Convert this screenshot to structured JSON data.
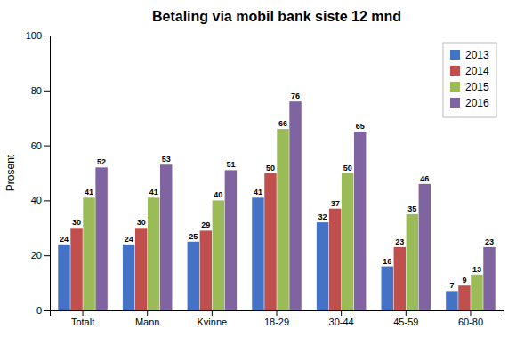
{
  "chart_data": {
    "type": "bar",
    "title": "Betaling via mobil bank siste 12 mnd",
    "ylabel": "Prosent",
    "categories": [
      "Totalt",
      "Mann",
      "Kvinne",
      "18-29",
      "30-44",
      "45-59",
      "60-80"
    ],
    "series": [
      {
        "name": "2013",
        "color": "#4472C4",
        "values": [
          24,
          24,
          25,
          41,
          32,
          16,
          7
        ]
      },
      {
        "name": "2014",
        "color": "#C0504D",
        "values": [
          30,
          30,
          29,
          50,
          37,
          23,
          9
        ]
      },
      {
        "name": "2015",
        "color": "#9BBB59",
        "values": [
          41,
          41,
          40,
          66,
          50,
          35,
          13
        ]
      },
      {
        "name": "2016",
        "color": "#8064A2",
        "values": [
          52,
          53,
          51,
          76,
          65,
          46,
          23
        ]
      }
    ],
    "ylim": [
      0,
      100
    ],
    "yticks": [
      0,
      20,
      40,
      60,
      80,
      100
    ],
    "grid": false,
    "legend": "upper right",
    "data_labels": true
  }
}
